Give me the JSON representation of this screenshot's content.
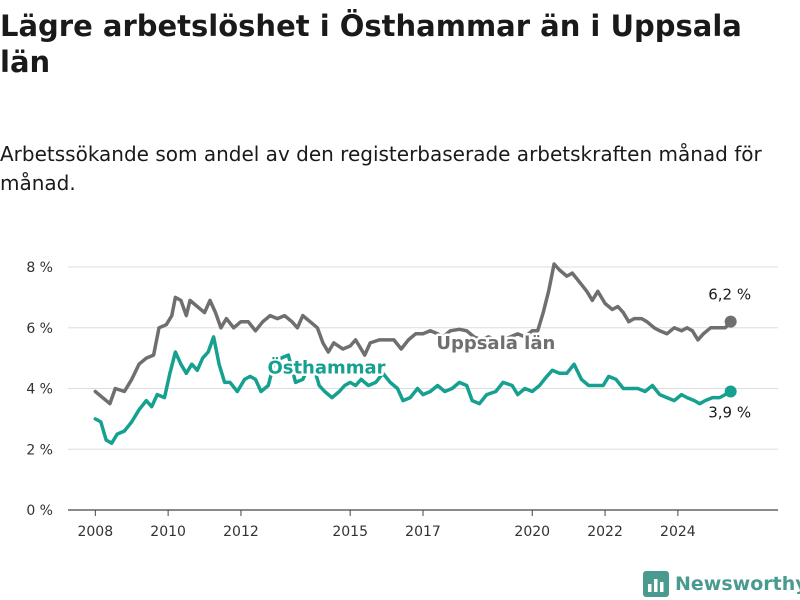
{
  "title": "Lägre arbetslöshet i Östhammar än i Uppsala län",
  "subtitle": "Arbetssökande som andel av den registerbaserade arbetskraften månad för månad.",
  "brand": {
    "name": "Newsworthy",
    "icon": "bar-chart-logo-icon",
    "color": "#4a9b8f"
  },
  "chart_data": {
    "type": "line",
    "y_ticks": [
      {
        "value": 0,
        "label": "0 %"
      },
      {
        "value": 2,
        "label": "2 %"
      },
      {
        "value": 4,
        "label": "4 %"
      },
      {
        "value": 6,
        "label": "6 %"
      },
      {
        "value": 8,
        "label": "8 %"
      }
    ],
    "x_ticks": [
      {
        "value": 2008,
        "label": "2008"
      },
      {
        "value": 2010,
        "label": "2010"
      },
      {
        "value": 2012,
        "label": "2012"
      },
      {
        "value": 2015,
        "label": "2015"
      },
      {
        "value": 2017,
        "label": "2017"
      },
      {
        "value": 2020,
        "label": "2020"
      },
      {
        "value": 2022,
        "label": "2022"
      },
      {
        "value": 2024,
        "label": "2024"
      }
    ],
    "xlim": [
      2007.25,
      2026.75
    ],
    "ylim": [
      0,
      8.3
    ],
    "grid": true,
    "series": [
      {
        "name": "Uppsala län",
        "color": "#6f6f6f",
        "end_label": "6,2 %",
        "points": [
          [
            2008.0,
            3.9
          ],
          [
            2008.4,
            3.5
          ],
          [
            2008.55,
            4.0
          ],
          [
            2008.8,
            3.9
          ],
          [
            2009.0,
            4.3
          ],
          [
            2009.2,
            4.8
          ],
          [
            2009.4,
            5.0
          ],
          [
            2009.6,
            5.1
          ],
          [
            2009.75,
            6.0
          ],
          [
            2009.95,
            6.1
          ],
          [
            2010.1,
            6.4
          ],
          [
            2010.2,
            7.0
          ],
          [
            2010.35,
            6.9
          ],
          [
            2010.5,
            6.4
          ],
          [
            2010.6,
            6.9
          ],
          [
            2010.8,
            6.7
          ],
          [
            2011.0,
            6.5
          ],
          [
            2011.15,
            6.9
          ],
          [
            2011.3,
            6.5
          ],
          [
            2011.45,
            6.0
          ],
          [
            2011.6,
            6.3
          ],
          [
            2011.8,
            6.0
          ],
          [
            2012.0,
            6.2
          ],
          [
            2012.2,
            6.2
          ],
          [
            2012.4,
            5.9
          ],
          [
            2012.6,
            6.2
          ],
          [
            2012.8,
            6.4
          ],
          [
            2013.0,
            6.3
          ],
          [
            2013.2,
            6.4
          ],
          [
            2013.4,
            6.2
          ],
          [
            2013.55,
            6.0
          ],
          [
            2013.7,
            6.4
          ],
          [
            2013.9,
            6.2
          ],
          [
            2014.1,
            6.0
          ],
          [
            2014.25,
            5.5
          ],
          [
            2014.4,
            5.2
          ],
          [
            2014.55,
            5.5
          ],
          [
            2014.8,
            5.3
          ],
          [
            2015.0,
            5.4
          ],
          [
            2015.15,
            5.6
          ],
          [
            2015.3,
            5.3
          ],
          [
            2015.4,
            5.1
          ],
          [
            2015.55,
            5.5
          ],
          [
            2015.8,
            5.6
          ],
          [
            2016.0,
            5.6
          ],
          [
            2016.2,
            5.6
          ],
          [
            2016.4,
            5.3
          ],
          [
            2016.6,
            5.6
          ],
          [
            2016.8,
            5.8
          ],
          [
            2017.0,
            5.8
          ],
          [
            2017.2,
            5.9
          ],
          [
            2017.4,
            5.8
          ],
          [
            2017.55,
            5.7
          ],
          [
            2017.75,
            5.9
          ],
          [
            2018.0,
            5.95
          ],
          [
            2018.2,
            5.9
          ],
          [
            2018.4,
            5.7
          ],
          [
            2018.6,
            5.6
          ],
          [
            2018.8,
            5.7
          ],
          [
            2019.0,
            5.6
          ],
          [
            2019.2,
            5.6
          ],
          [
            2019.4,
            5.7
          ],
          [
            2019.6,
            5.8
          ],
          [
            2019.8,
            5.7
          ],
          [
            2020.0,
            5.9
          ],
          [
            2020.15,
            5.9
          ],
          [
            2020.3,
            6.5
          ],
          [
            2020.45,
            7.2
          ],
          [
            2020.6,
            8.1
          ],
          [
            2020.75,
            7.9
          ],
          [
            2020.95,
            7.7
          ],
          [
            2021.1,
            7.8
          ],
          [
            2021.3,
            7.5
          ],
          [
            2021.5,
            7.2
          ],
          [
            2021.65,
            6.9
          ],
          [
            2021.8,
            7.2
          ],
          [
            2022.0,
            6.8
          ],
          [
            2022.2,
            6.6
          ],
          [
            2022.35,
            6.7
          ],
          [
            2022.5,
            6.5
          ],
          [
            2022.65,
            6.2
          ],
          [
            2022.8,
            6.3
          ],
          [
            2023.0,
            6.3
          ],
          [
            2023.15,
            6.2
          ],
          [
            2023.35,
            6.0
          ],
          [
            2023.5,
            5.9
          ],
          [
            2023.7,
            5.8
          ],
          [
            2023.9,
            6.0
          ],
          [
            2024.1,
            5.9
          ],
          [
            2024.25,
            6.0
          ],
          [
            2024.4,
            5.9
          ],
          [
            2024.55,
            5.6
          ],
          [
            2024.7,
            5.8
          ],
          [
            2024.9,
            6.0
          ],
          [
            2025.1,
            6.0
          ],
          [
            2025.3,
            6.0
          ],
          [
            2025.45,
            6.2
          ]
        ]
      },
      {
        "name": "Östhammar",
        "color": "#15a090",
        "end_label": "3,9 %",
        "points": [
          [
            2008.0,
            3.0
          ],
          [
            2008.15,
            2.9
          ],
          [
            2008.3,
            2.3
          ],
          [
            2008.45,
            2.2
          ],
          [
            2008.6,
            2.5
          ],
          [
            2008.8,
            2.6
          ],
          [
            2009.0,
            2.9
          ],
          [
            2009.2,
            3.3
          ],
          [
            2009.4,
            3.6
          ],
          [
            2009.55,
            3.4
          ],
          [
            2009.7,
            3.8
          ],
          [
            2009.9,
            3.7
          ],
          [
            2010.05,
            4.5
          ],
          [
            2010.2,
            5.2
          ],
          [
            2010.35,
            4.8
          ],
          [
            2010.5,
            4.5
          ],
          [
            2010.65,
            4.8
          ],
          [
            2010.8,
            4.6
          ],
          [
            2010.95,
            5.0
          ],
          [
            2011.1,
            5.2
          ],
          [
            2011.25,
            5.7
          ],
          [
            2011.4,
            4.8
          ],
          [
            2011.55,
            4.2
          ],
          [
            2011.7,
            4.2
          ],
          [
            2011.9,
            3.9
          ],
          [
            2012.1,
            4.3
          ],
          [
            2012.25,
            4.4
          ],
          [
            2012.4,
            4.3
          ],
          [
            2012.55,
            3.9
          ],
          [
            2012.75,
            4.1
          ],
          [
            2012.9,
            4.8
          ],
          [
            2013.1,
            5.0
          ],
          [
            2013.3,
            5.1
          ],
          [
            2013.5,
            4.2
          ],
          [
            2013.7,
            4.3
          ],
          [
            2013.9,
            4.8
          ],
          [
            2014.0,
            4.7
          ],
          [
            2014.15,
            4.1
          ],
          [
            2014.3,
            3.9
          ],
          [
            2014.5,
            3.7
          ],
          [
            2014.7,
            3.9
          ],
          [
            2014.85,
            4.1
          ],
          [
            2015.0,
            4.2
          ],
          [
            2015.15,
            4.1
          ],
          [
            2015.3,
            4.3
          ],
          [
            2015.5,
            4.1
          ],
          [
            2015.7,
            4.2
          ],
          [
            2015.9,
            4.5
          ],
          [
            2016.1,
            4.2
          ],
          [
            2016.3,
            4.0
          ],
          [
            2016.45,
            3.6
          ],
          [
            2016.65,
            3.7
          ],
          [
            2016.85,
            4.0
          ],
          [
            2017.0,
            3.8
          ],
          [
            2017.2,
            3.9
          ],
          [
            2017.4,
            4.1
          ],
          [
            2017.6,
            3.9
          ],
          [
            2017.8,
            4.0
          ],
          [
            2018.0,
            4.2
          ],
          [
            2018.2,
            4.1
          ],
          [
            2018.35,
            3.6
          ],
          [
            2018.55,
            3.5
          ],
          [
            2018.75,
            3.8
          ],
          [
            2019.0,
            3.9
          ],
          [
            2019.2,
            4.2
          ],
          [
            2019.45,
            4.1
          ],
          [
            2019.6,
            3.8
          ],
          [
            2019.8,
            4.0
          ],
          [
            2020.0,
            3.9
          ],
          [
            2020.2,
            4.1
          ],
          [
            2020.4,
            4.4
          ],
          [
            2020.55,
            4.6
          ],
          [
            2020.75,
            4.5
          ],
          [
            2020.95,
            4.5
          ],
          [
            2021.15,
            4.8
          ],
          [
            2021.35,
            4.3
          ],
          [
            2021.55,
            4.1
          ],
          [
            2021.75,
            4.1
          ],
          [
            2021.95,
            4.1
          ],
          [
            2022.1,
            4.4
          ],
          [
            2022.3,
            4.3
          ],
          [
            2022.5,
            4.0
          ],
          [
            2022.7,
            4.0
          ],
          [
            2022.9,
            4.0
          ],
          [
            2023.1,
            3.9
          ],
          [
            2023.3,
            4.1
          ],
          [
            2023.5,
            3.8
          ],
          [
            2023.7,
            3.7
          ],
          [
            2023.9,
            3.6
          ],
          [
            2024.1,
            3.8
          ],
          [
            2024.25,
            3.7
          ],
          [
            2024.45,
            3.6
          ],
          [
            2024.6,
            3.5
          ],
          [
            2024.75,
            3.6
          ],
          [
            2024.95,
            3.7
          ],
          [
            2025.15,
            3.7
          ],
          [
            2025.3,
            3.8
          ],
          [
            2025.45,
            3.9
          ]
        ]
      }
    ]
  }
}
